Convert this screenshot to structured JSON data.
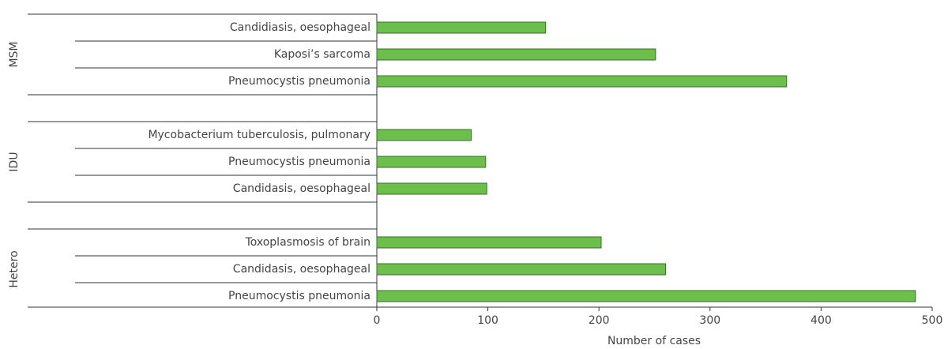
{
  "chart_data": {
    "type": "bar",
    "orientation": "horizontal",
    "color": "#6cbf4a",
    "x_label": "Number of cases",
    "groups": [
      {
        "name": "MSM",
        "categories": [
          "Candidiasis, oesophageal",
          "Kaposi’s sarcoma",
          "Pneumocystis pneumonia"
        ],
        "values": [
          152,
          251,
          369
        ]
      },
      {
        "name": "IDU",
        "categories": [
          "Mycobacterium tuberculosis, pulmonary",
          "Pneumocystis pneumonia",
          "Candidasis, oesophageal"
        ],
        "values": [
          85,
          98,
          99
        ]
      },
      {
        "name": "Hetero",
        "categories": [
          "Toxoplasmosis of brain",
          "Candidasis, oesophageal",
          "Pneumocystis pneumonia"
        ],
        "values": [
          202,
          260,
          485
        ]
      }
    ],
    "xlim": [
      0,
      500
    ],
    "xticks": [
      0,
      100,
      200,
      300,
      400,
      500
    ]
  }
}
